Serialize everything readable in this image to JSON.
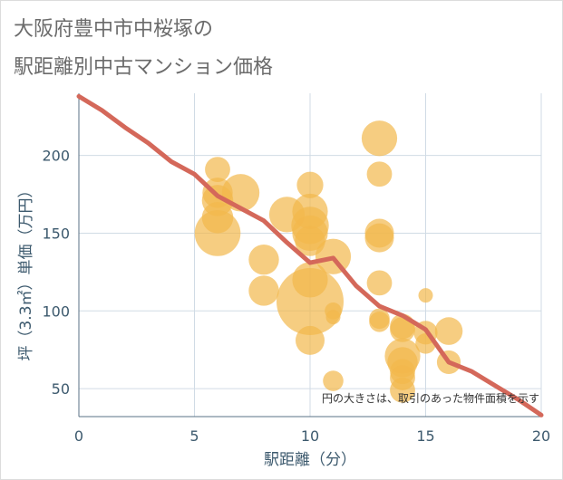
{
  "title_line1": "大阪府豊中市中桜塚の",
  "title_line2": "駅距離別中古マンション価格",
  "chart_data": {
    "type": "scatter",
    "xlabel": "駅距離（分）",
    "ylabel": "坪（3.3㎡）単価（万円）",
    "xlim": [
      0,
      20
    ],
    "ylim": [
      32,
      240
    ],
    "xticks": [
      "0",
      "5",
      "10",
      "15",
      "20"
    ],
    "yticks": [
      "50",
      "100",
      "150",
      "200"
    ],
    "xtick_values": [
      0,
      5,
      10,
      15,
      20
    ],
    "ytick_values": [
      50,
      100,
      150,
      200
    ],
    "annotation": "円の大きさは、取引のあった物件面積を示す",
    "bubble_color": "#f2b84b",
    "line_color": "#d4685a",
    "bubbles": [
      {
        "x": 6,
        "y": 191,
        "size": 45
      },
      {
        "x": 6,
        "y": 176,
        "size": 65
      },
      {
        "x": 6,
        "y": 171,
        "size": 70
      },
      {
        "x": 6,
        "y": 160,
        "size": 70
      },
      {
        "x": 6,
        "y": 150,
        "size": 150
      },
      {
        "x": 7,
        "y": 176,
        "size": 100
      },
      {
        "x": 8,
        "y": 133,
        "size": 65
      },
      {
        "x": 8,
        "y": 113,
        "size": 65
      },
      {
        "x": 9,
        "y": 162,
        "size": 90
      },
      {
        "x": 10,
        "y": 181,
        "size": 50
      },
      {
        "x": 10,
        "y": 164,
        "size": 90
      },
      {
        "x": 10,
        "y": 155,
        "size": 100
      },
      {
        "x": 10,
        "y": 150,
        "size": 90
      },
      {
        "x": 10,
        "y": 145,
        "size": 65
      },
      {
        "x": 10,
        "y": 120,
        "size": 90
      },
      {
        "x": 10,
        "y": 106,
        "size": 320
      },
      {
        "x": 10,
        "y": 81,
        "size": 60
      },
      {
        "x": 11,
        "y": 135,
        "size": 90
      },
      {
        "x": 11,
        "y": 100,
        "size": 20
      },
      {
        "x": 11,
        "y": 96,
        "size": 15
      },
      {
        "x": 11,
        "y": 55,
        "size": 30
      },
      {
        "x": 13,
        "y": 211,
        "size": 90
      },
      {
        "x": 13,
        "y": 188,
        "size": 45
      },
      {
        "x": 13,
        "y": 150,
        "size": 60
      },
      {
        "x": 13,
        "y": 147,
        "size": 60
      },
      {
        "x": 13,
        "y": 118,
        "size": 45
      },
      {
        "x": 13,
        "y": 95,
        "size": 30
      },
      {
        "x": 13,
        "y": 93,
        "size": 30
      },
      {
        "x": 14,
        "y": 90,
        "size": 45
      },
      {
        "x": 14,
        "y": 88,
        "size": 45
      },
      {
        "x": 14,
        "y": 71,
        "size": 90
      },
      {
        "x": 14,
        "y": 67,
        "size": 65
      },
      {
        "x": 14,
        "y": 61,
        "size": 45
      },
      {
        "x": 14,
        "y": 57,
        "size": 45
      },
      {
        "x": 14,
        "y": 49,
        "size": 45
      },
      {
        "x": 15,
        "y": 110,
        "size": 15
      },
      {
        "x": 15,
        "y": 86,
        "size": 40
      },
      {
        "x": 15,
        "y": 79,
        "size": 30
      },
      {
        "x": 16,
        "y": 87,
        "size": 55
      },
      {
        "x": 16,
        "y": 67,
        "size": 40
      }
    ],
    "trend_line": [
      {
        "x": 0,
        "y": 238
      },
      {
        "x": 1,
        "y": 229
      },
      {
        "x": 2,
        "y": 218
      },
      {
        "x": 3,
        "y": 208
      },
      {
        "x": 4,
        "y": 196
      },
      {
        "x": 5,
        "y": 188
      },
      {
        "x": 6,
        "y": 174
      },
      {
        "x": 7,
        "y": 166
      },
      {
        "x": 8,
        "y": 158
      },
      {
        "x": 9,
        "y": 144
      },
      {
        "x": 10,
        "y": 131
      },
      {
        "x": 11,
        "y": 134
      },
      {
        "x": 12,
        "y": 116
      },
      {
        "x": 13,
        "y": 103
      },
      {
        "x": 14,
        "y": 97
      },
      {
        "x": 15,
        "y": 88
      },
      {
        "x": 16,
        "y": 67
      },
      {
        "x": 17,
        "y": 61
      },
      {
        "x": 18,
        "y": 52
      },
      {
        "x": 19,
        "y": 43
      },
      {
        "x": 20,
        "y": 33
      }
    ]
  }
}
